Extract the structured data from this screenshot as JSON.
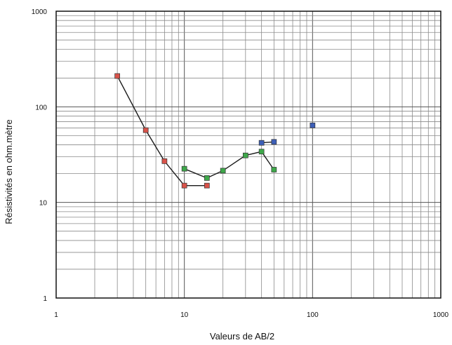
{
  "chart_data": {
    "type": "scatter",
    "x_scale": "log",
    "y_scale": "log",
    "xlim": [
      1,
      1000
    ],
    "ylim": [
      1,
      1000
    ],
    "grid": true,
    "xlabel": "Valeurs de AB/2",
    "ylabel": "Résistivités en ohm.mètre",
    "x_ticks": [
      "1",
      "10",
      "100",
      "1000"
    ],
    "y_ticks": [
      "1",
      "10",
      "100",
      "1000"
    ],
    "series": [
      {
        "color": "#d9534a",
        "line_color": "#1a1a1a",
        "connected": true,
        "points": [
          [
            3,
            210
          ],
          [
            5,
            57
          ],
          [
            7,
            27
          ],
          [
            10,
            15
          ],
          [
            15,
            15
          ]
        ]
      },
      {
        "color": "#3ea84a",
        "line_color": "#1a1a1a",
        "connected": true,
        "points": [
          [
            10,
            22.5
          ],
          [
            15,
            18
          ],
          [
            20,
            21.5
          ],
          [
            30,
            31
          ],
          [
            40,
            34
          ],
          [
            50,
            22
          ]
        ]
      },
      {
        "color": "#3d5fb8",
        "line_color": "#1a1a1a",
        "connected": true,
        "points": [
          [
            40,
            42
          ],
          [
            50,
            43
          ]
        ]
      },
      {
        "color": "#3d5fb8",
        "connected": false,
        "points": [
          [
            100,
            64
          ]
        ]
      }
    ]
  }
}
